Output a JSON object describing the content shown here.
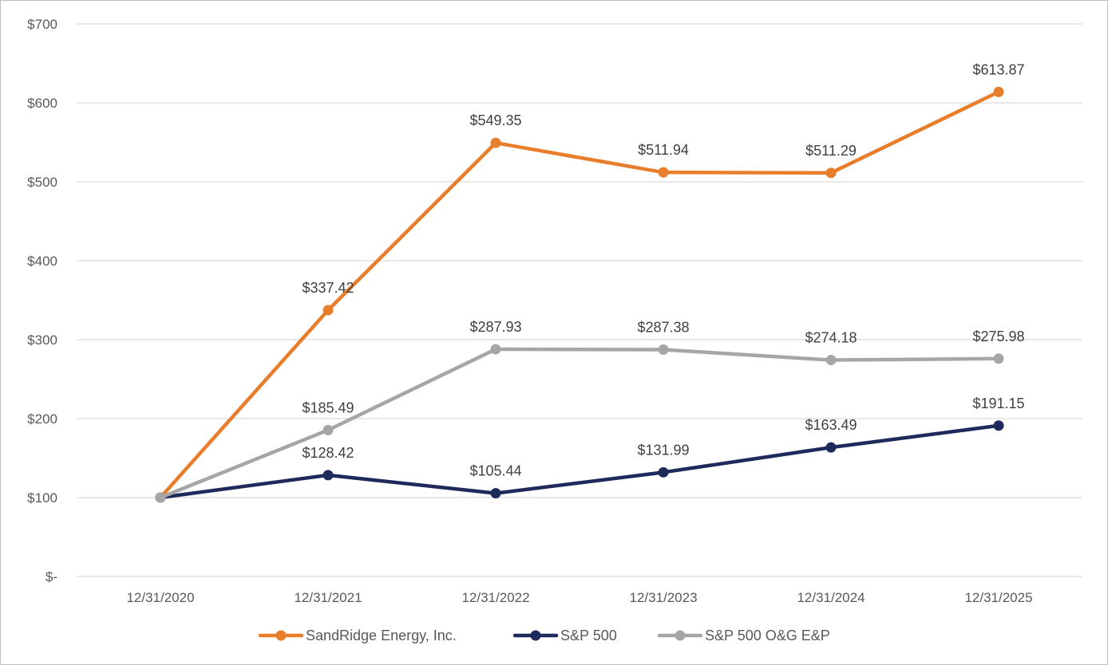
{
  "chart_data": {
    "type": "line",
    "title": "",
    "xlabel": "",
    "ylabel": "",
    "categories": [
      "12/31/2020",
      "12/31/2021",
      "12/31/2022",
      "12/31/2023",
      "12/31/2024",
      "12/31/2025"
    ],
    "ylim": [
      0,
      700
    ],
    "yticks": [
      0,
      100,
      200,
      300,
      400,
      500,
      600,
      700
    ],
    "ytick_labels": [
      "$-",
      "$100",
      "$200",
      "$300",
      "$400",
      "$500",
      "$600",
      "$700"
    ],
    "grid": true,
    "legend_position": "bottom",
    "series": [
      {
        "name": "SandRidge Energy, Inc.",
        "color": "#e87d2b",
        "values": [
          100,
          337.42,
          549.35,
          511.94,
          511.29,
          613.87
        ],
        "labels": [
          "",
          "$337.42",
          "$549.35",
          "$511.94",
          "$511.29",
          "$613.87"
        ]
      },
      {
        "name": "S&P 500",
        "color": "#1f2a5c",
        "values": [
          100,
          128.42,
          105.44,
          131.99,
          163.49,
          191.15
        ],
        "labels": [
          "",
          "$128.42",
          "$105.44",
          "$131.99",
          "$163.49",
          "$191.15"
        ]
      },
      {
        "name": "S&P 500 O&G E&P",
        "color": "#a6a6a6",
        "values": [
          100,
          185.49,
          287.93,
          287.38,
          274.18,
          275.98
        ],
        "labels": [
          "",
          "$185.49",
          "$287.93",
          "$287.38",
          "$274.18",
          "$275.98"
        ]
      }
    ]
  }
}
